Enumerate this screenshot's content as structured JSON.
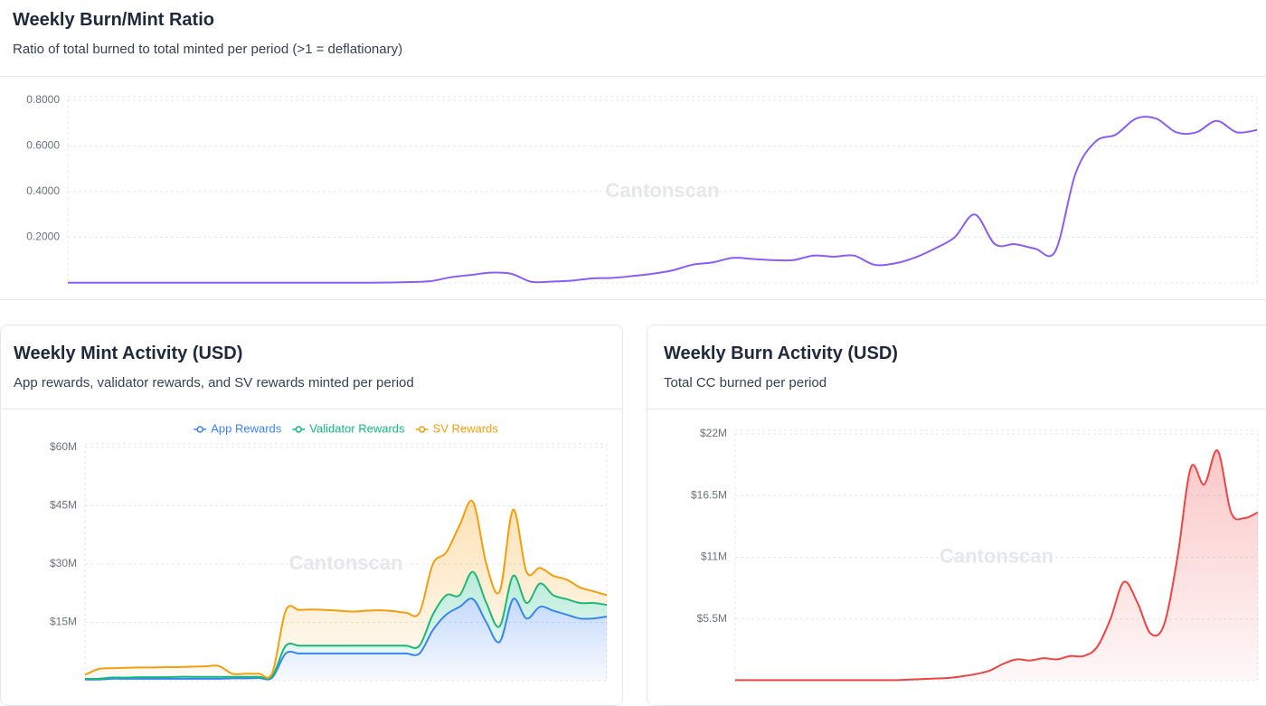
{
  "chart_data": [
    {
      "type": "line",
      "title": "Weekly Burn/Mint Ratio",
      "subtitle": "Ratio of total burned to total minted per period (>1 = deflationary)",
      "watermark": "Cantonscan",
      "color": "#8b5cf6",
      "grid": true,
      "ylim": [
        0,
        0.8
      ],
      "yticks": [
        {
          "value": 0.2,
          "label": "0.2000"
        },
        {
          "value": 0.4,
          "label": "0.4000"
        },
        {
          "value": 0.6,
          "label": "0.6000"
        },
        {
          "value": 0.8,
          "label": "0.8000"
        }
      ],
      "values": [
        0.001,
        0.001,
        0.001,
        0.001,
        0.001,
        0.001,
        0.001,
        0.001,
        0.001,
        0.001,
        0.001,
        0.001,
        0.001,
        0.001,
        0.001,
        0.001,
        0.002,
        0.004,
        0.008,
        0.025,
        0.035,
        0.045,
        0.04,
        0.005,
        0.006,
        0.01,
        0.02,
        0.022,
        0.03,
        0.04,
        0.055,
        0.08,
        0.09,
        0.11,
        0.105,
        0.1,
        0.1,
        0.12,
        0.115,
        0.12,
        0.08,
        0.085,
        0.11,
        0.15,
        0.2,
        0.3,
        0.17,
        0.17,
        0.15,
        0.14,
        0.48,
        0.62,
        0.65,
        0.72,
        0.72,
        0.66,
        0.66,
        0.71,
        0.66,
        0.67
      ]
    },
    {
      "type": "area",
      "title": "Weekly Mint Activity (USD)",
      "subtitle": "App rewards, validator rewards, and SV rewards minted per period",
      "watermark": "Cantonscan",
      "stacked": true,
      "grid": true,
      "legend": "top",
      "ylim": [
        0,
        60000000
      ],
      "yticks": [
        {
          "value": 15000000,
          "label": "$15M"
        },
        {
          "value": 30000000,
          "label": "$30M"
        },
        {
          "value": 45000000,
          "label": "$45M"
        },
        {
          "value": 60000000,
          "label": "$60M"
        }
      ],
      "series": [
        {
          "name": "App Rewards",
          "color": "#3b82f6",
          "values": [
            300000,
            300000,
            500000,
            500000,
            500000,
            500000,
            500000,
            500000,
            500000,
            500000,
            500000,
            600000,
            600000,
            700000,
            800000,
            7000000,
            7000000,
            7000000,
            7000000,
            7000000,
            7000000,
            7000000,
            7000000,
            7000000,
            7000000,
            7000000,
            13000000,
            17000000,
            19000000,
            21000000,
            15000000,
            10000000,
            21000000,
            16000000,
            19000000,
            18000000,
            17000000,
            16000000,
            16000000,
            16500000
          ]
        },
        {
          "name": "Validator Rewards",
          "color": "#10b981",
          "values": [
            200000,
            200000,
            300000,
            300000,
            400000,
            400000,
            400000,
            500000,
            500000,
            500000,
            500000,
            400000,
            400000,
            300000,
            400000,
            2000000,
            2000000,
            2000000,
            2000000,
            2000000,
            2000000,
            2000000,
            2000000,
            2000000,
            2000000,
            2000000,
            4000000,
            5000000,
            3000000,
            7000000,
            5000000,
            4000000,
            6000000,
            4000000,
            6000000,
            4000000,
            4000000,
            4000000,
            4000000,
            3000000
          ]
        },
        {
          "name": "SV Rewards",
          "color": "#f59e0b",
          "values": [
            1000000,
            2500000,
            2400000,
            2500000,
            2500000,
            2500000,
            2600000,
            2500000,
            2600000,
            2700000,
            2800000,
            800000,
            800000,
            800000,
            800000,
            9000000,
            9200000,
            9300000,
            9200000,
            9000000,
            8800000,
            9000000,
            9100000,
            8900000,
            8500000,
            8500000,
            13000000,
            11000000,
            18000000,
            18000000,
            10000000,
            9000000,
            17000000,
            8000000,
            4000000,
            5000000,
            5000000,
            4000000,
            3000000,
            2500000
          ]
        }
      ]
    },
    {
      "type": "area",
      "title": "Weekly Burn Activity (USD)",
      "subtitle": "Total CC burned per period",
      "watermark": "Cantonscan",
      "color": "#ef4444",
      "grid": true,
      "ylim": [
        0,
        22000000
      ],
      "yticks": [
        {
          "value": 5500000,
          "label": "$5.5M"
        },
        {
          "value": 11000000,
          "label": "$11M"
        },
        {
          "value": 16500000,
          "label": "$16.5M"
        },
        {
          "value": 22000000,
          "label": "$22M"
        }
      ],
      "values": [
        50000,
        50000,
        50000,
        50000,
        50000,
        50000,
        50000,
        50000,
        50000,
        50000,
        50000,
        50000,
        50000,
        100000,
        150000,
        200000,
        250000,
        400000,
        600000,
        900000,
        1500000,
        1900000,
        1800000,
        2000000,
        1900000,
        2200000,
        2200000,
        3000000,
        5500000,
        8800000,
        7000000,
        4200000,
        5000000,
        11000000,
        19000000,
        17500000,
        20500000,
        15000000,
        14500000,
        15000000
      ]
    }
  ]
}
